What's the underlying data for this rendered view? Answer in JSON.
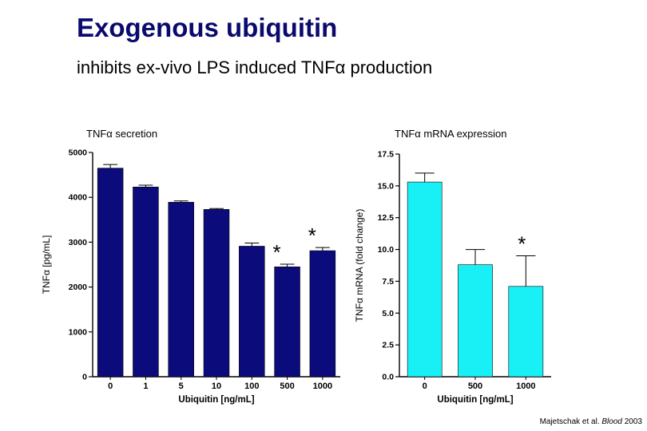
{
  "title": "Exogenous ubiquitin",
  "subtitle": "inhibits ex-vivo LPS induced TNFα production",
  "citation": {
    "authors": "Majetschak et al.",
    "journal": "Blood",
    "year": "2003"
  },
  "chart_data": [
    {
      "type": "bar",
      "title": "TNFα secretion",
      "xlabel": "Ubiquitin [ng/mL]",
      "ylabel": "TNFα [pg/mL]",
      "ylim": [
        0,
        5000
      ],
      "yticks": [
        0,
        1000,
        2000,
        3000,
        4000,
        5000
      ],
      "categories": [
        "0",
        "1",
        "5",
        "10",
        "100",
        "500",
        "1000"
      ],
      "values": [
        4650,
        4230,
        3890,
        3730,
        2910,
        2450,
        2810
      ],
      "errors": [
        80,
        40,
        30,
        20,
        70,
        60,
        70
      ],
      "significance": [
        "",
        "",
        "",
        "",
        "",
        "*",
        "*"
      ],
      "bar_color": "#0b0b7c",
      "grid": false
    },
    {
      "type": "bar",
      "title": "TNFα mRNA expression",
      "xlabel": "Ubiquitin [ng/mL]",
      "ylabel": "TNFα mRNA (fold change)",
      "ylim": [
        0,
        17.5
      ],
      "yticks": [
        0.0,
        2.5,
        5.0,
        7.5,
        10.0,
        12.5,
        15.0,
        17.5
      ],
      "categories": [
        "0",
        "500",
        "1000"
      ],
      "values": [
        15.3,
        8.8,
        7.1
      ],
      "errors": [
        0.7,
        1.2,
        2.4
      ],
      "significance": [
        "",
        "",
        "*"
      ],
      "bar_color": "#19f0f5",
      "grid": false
    }
  ]
}
